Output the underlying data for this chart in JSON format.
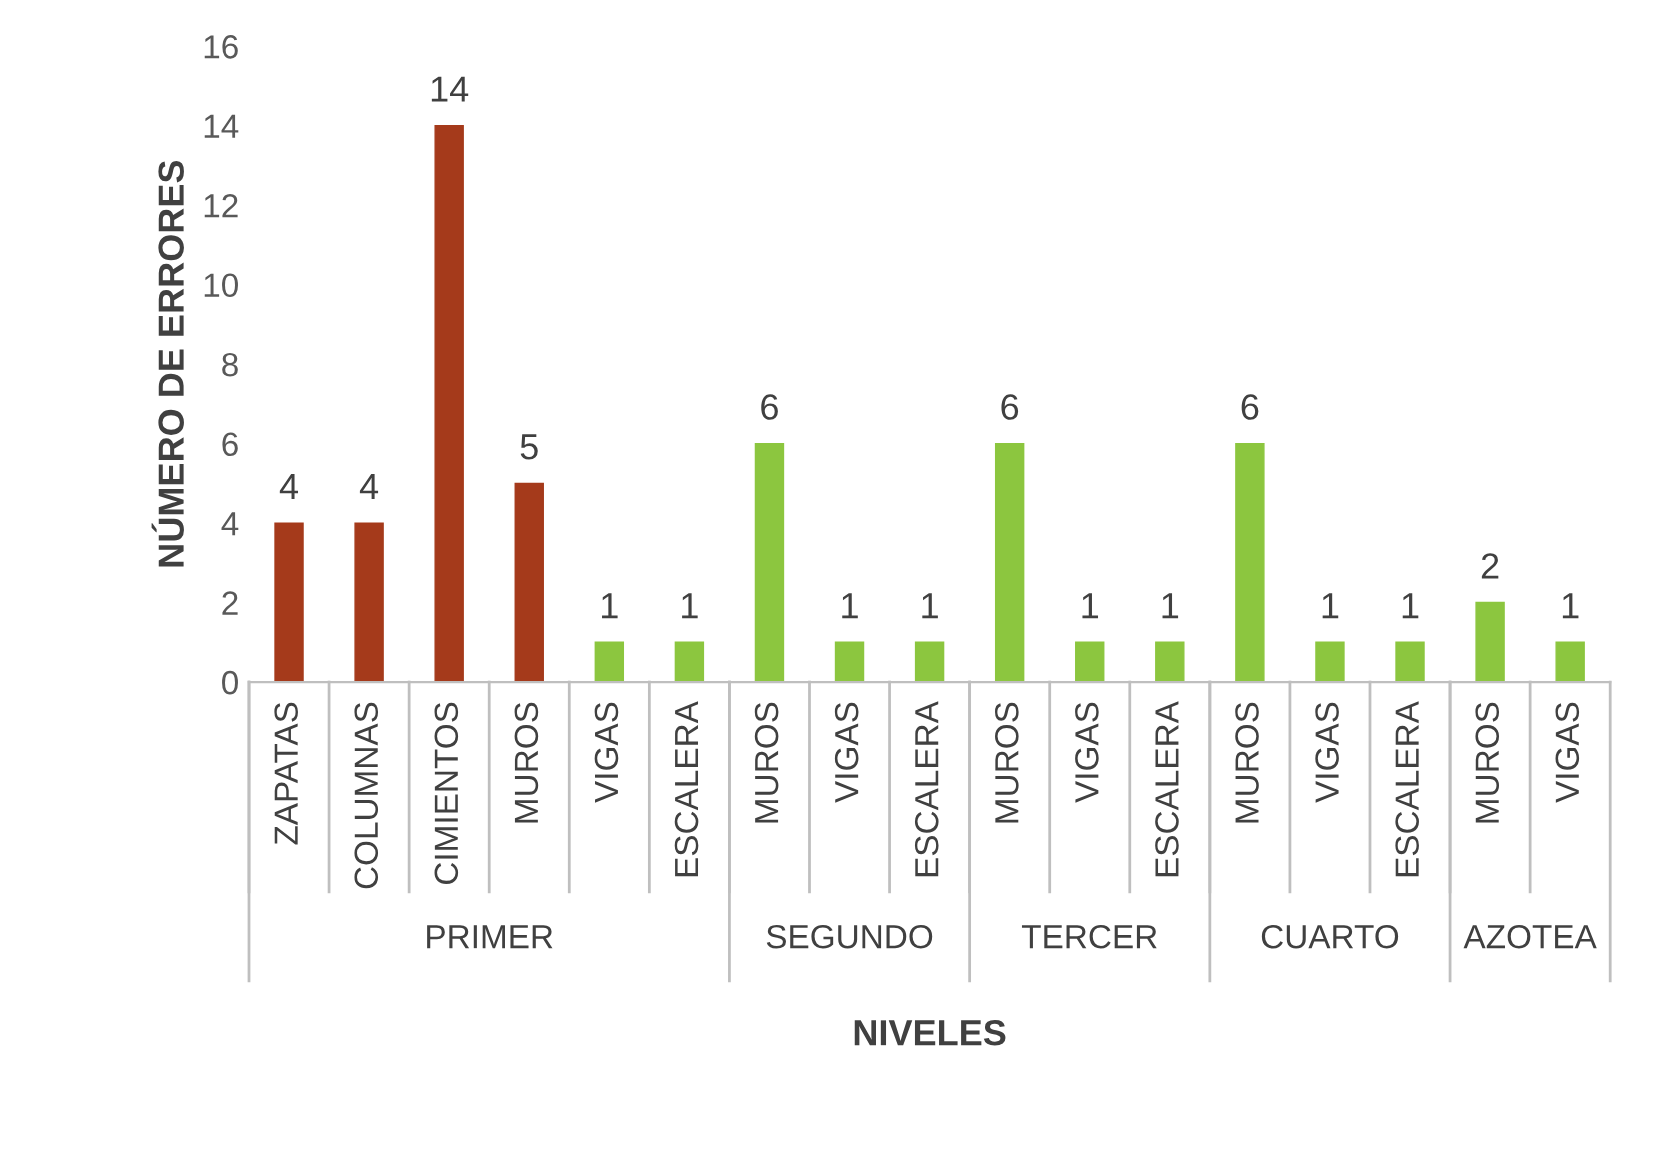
{
  "chart_data": {
    "type": "bar",
    "xlabel": "NIVELES",
    "ylabel": "NÚMERO DE ERRORES",
    "categories": [
      "ZAPATAS",
      "COLUMNAS",
      "CIMIENTOS",
      "MUROS",
      "VIGAS",
      "ESCALERA",
      "MUROS",
      "VIGAS",
      "ESCALERA",
      "MUROS",
      "VIGAS",
      "ESCALERA",
      "MUROS",
      "VIGAS",
      "ESCALERA",
      "MUROS",
      "VIGAS"
    ],
    "annotations": [
      "PRIMER",
      "SEGUNDO",
      "TERCER",
      "CUARTO",
      "AZOTEA"
    ],
    "values": [
      4,
      4,
      14,
      5,
      1,
      1,
      6,
      1,
      1,
      6,
      1,
      1,
      6,
      1,
      1,
      2,
      1
    ],
    "colors": [
      "#a53a1b",
      "#a53a1b",
      "#a53a1b",
      "#a53a1b",
      "#8cc63f",
      "#8cc63f",
      "#8cc63f",
      "#8cc63f",
      "#8cc63f",
      "#8cc63f",
      "#8cc63f",
      "#8cc63f",
      "#8cc63f",
      "#8cc63f",
      "#8cc63f",
      "#8cc63f",
      "#8cc63f"
    ],
    "ylim": [
      0,
      16
    ],
    "yticks": [
      0,
      2,
      4,
      6,
      8,
      10,
      12,
      14,
      16
    ],
    "grid": false,
    "legend": false,
    "data_labels": true
  }
}
